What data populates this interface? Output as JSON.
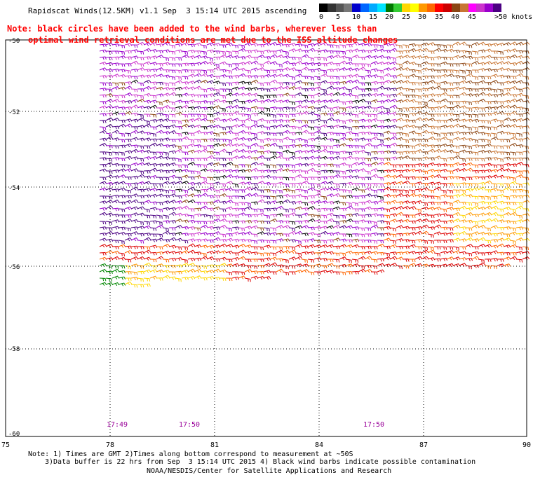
{
  "header": {
    "title": "Rapidscat Winds(12.5KM) v1.1 Sep  3 15:14 UTC 2015 ascending"
  },
  "note": {
    "line1": "Note: black circles have been added to the wind barbs, wherever less than",
    "line2": "optimal wind retrieval conditions are met due to the ISS altitude changes"
  },
  "legend": {
    "colors": [
      "#000000",
      "#333333",
      "#555555",
      "#777777",
      "#0000cc",
      "#0066ff",
      "#00aaff",
      "#00e5ff",
      "#007700",
      "#33cc33",
      "#ffd700",
      "#ffff00",
      "#ff9900",
      "#ff6600",
      "#ff0000",
      "#cc0000",
      "#8b4513",
      "#c87533",
      "#ff00ff",
      "#cc33cc",
      "#9900cc",
      "#4b0082"
    ],
    "labels": [
      "0",
      "5",
      "10",
      "15",
      "20",
      "25",
      "30",
      "35",
      "40",
      "45",
      ">50 knots"
    ]
  },
  "map": {
    "x_ticks": [
      "75",
      "78",
      "81",
      "84",
      "87",
      "90"
    ],
    "y_ticks": [
      "-50",
      "-52",
      "-54",
      "-56",
      "-58",
      "-60"
    ],
    "times": [
      "17:49",
      "17:50",
      "17:50"
    ],
    "time_color": "#990099"
  },
  "footer": {
    "line1": "Note: 1) Times are GMT 2)Times along bottom correspond to measurement at ~50S",
    "line2": "3)Data buffer is 22 hrs from Sep  3 15:14 UTC 2015 4) Black wind barbs indicate possible contamination",
    "line3": "NOAA/NESDIS/Center for Satellite Applications and Research"
  }
}
